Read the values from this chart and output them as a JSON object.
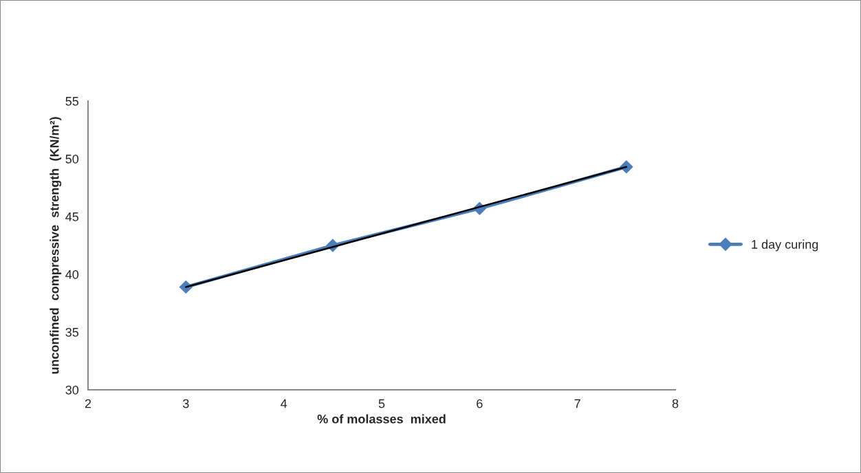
{
  "chart_data": {
    "type": "line",
    "xlabel": "% of molasses  mixed",
    "ylabel": "unconfined  compressive  strength  (KN/m²)",
    "x": [
      3,
      4.5,
      6,
      7.5
    ],
    "series": [
      {
        "name": "1 day curing",
        "color": "#4a7ebb",
        "values": [
          38.9,
          42.5,
          45.7,
          49.3
        ],
        "marker": "diamond"
      },
      {
        "type": "line",
        "color": "#000000",
        "x": [
          3,
          7.5
        ],
        "values": [
          38.9,
          49.3
        ],
        "marker": "none"
      }
    ],
    "xlim": [
      2,
      8
    ],
    "xticks": [
      2,
      3,
      4,
      5,
      6,
      7,
      8
    ],
    "ylim": [
      30,
      55
    ],
    "yticks": [
      30,
      35,
      40,
      45,
      50,
      55
    ],
    "grid": false,
    "legend": "right"
  }
}
